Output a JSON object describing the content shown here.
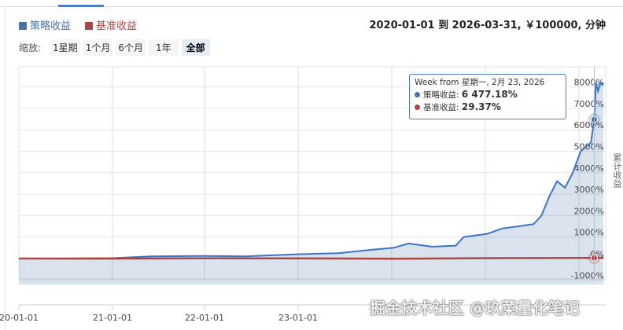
{
  "legend": [
    {
      "label": "策略收益",
      "color": "#4572a7"
    },
    {
      "label": "基准收益",
      "color": "#aa4643"
    }
  ],
  "range_text": "2020-01-01 到 2026-03-31, ￥100000, 分钟",
  "zoom": {
    "label": "缩放:",
    "buttons": [
      "1星期",
      "1个月",
      "6个月",
      "1年",
      "全部"
    ],
    "active": "全部"
  },
  "tooltip": {
    "title": "Week from 星期一, 2月 23, 2026",
    "rows": [
      {
        "name": "策略收益",
        "value": "6 477.18%"
      },
      {
        "name": "基准收益",
        "value": "29.37%"
      }
    ]
  },
  "watermark": "掘金技术社区 @玖菜量化笔记",
  "chart_data": {
    "type": "area",
    "ylabel": "累计收益",
    "ylim": [
      -1000,
      8000
    ],
    "yticks": [
      "8000%",
      "7000%",
      "6000%",
      "5000%",
      "4000%",
      "3000%",
      "2000%",
      "1000%",
      "0%",
      "-1000%"
    ],
    "xlim": [
      "2020-01-01",
      "2026-03-31"
    ],
    "xticks": [
      "20-01-01",
      "21-01-01",
      "22-01-01",
      "23-01-01"
    ],
    "grid": true,
    "series": [
      {
        "name": "策略收益",
        "color": "#4572a7",
        "points": [
          [
            "2020-01-01",
            0
          ],
          [
            "2020-06-01",
            0
          ],
          [
            "2021-01-01",
            20
          ],
          [
            "2021-06-01",
            100
          ],
          [
            "2022-01-01",
            120
          ],
          [
            "2022-06-01",
            100
          ],
          [
            "2023-01-01",
            200
          ],
          [
            "2023-06-01",
            250
          ],
          [
            "2023-10-01",
            400
          ],
          [
            "2024-01-01",
            500
          ],
          [
            "2024-03-01",
            700
          ],
          [
            "2024-06-01",
            550
          ],
          [
            "2024-09-01",
            600
          ],
          [
            "2024-10-01",
            1000
          ],
          [
            "2025-01-01",
            1150
          ],
          [
            "2025-03-01",
            1400
          ],
          [
            "2025-05-01",
            1500
          ],
          [
            "2025-07-01",
            1600
          ],
          [
            "2025-08-01",
            2000
          ],
          [
            "2025-09-01",
            2900
          ],
          [
            "2025-10-01",
            3600
          ],
          [
            "2025-11-01",
            3300
          ],
          [
            "2025-12-01",
            4000
          ],
          [
            "2026-01-01",
            5000
          ],
          [
            "2026-02-10",
            5400
          ],
          [
            "2026-02-23",
            6477.18
          ],
          [
            "2026-03-02",
            8200
          ],
          [
            "2026-03-10",
            7800
          ],
          [
            "2026-03-20",
            8200
          ],
          [
            "2026-03-31",
            8100
          ]
        ]
      },
      {
        "name": "基准收益",
        "color": "#aa4643",
        "points": [
          [
            "2020-01-01",
            0
          ],
          [
            "2021-01-01",
            -5
          ],
          [
            "2022-01-01",
            10
          ],
          [
            "2023-01-01",
            5
          ],
          [
            "2024-01-01",
            -10
          ],
          [
            "2025-01-01",
            15
          ],
          [
            "2026-02-23",
            29.37
          ],
          [
            "2026-03-31",
            25
          ]
        ]
      }
    ]
  }
}
